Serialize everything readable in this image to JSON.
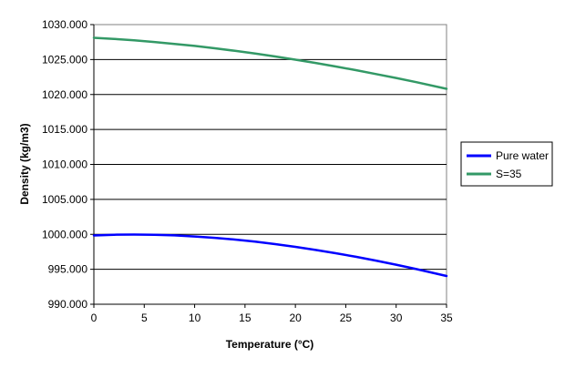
{
  "chart_data": {
    "type": "line",
    "xlabel": "Temperature (°C)",
    "ylabel": "Density (kg/m3)",
    "xlim": [
      0,
      35
    ],
    "ylim": [
      990,
      1030
    ],
    "x_ticks": [
      "0",
      "5",
      "10",
      "15",
      "20",
      "25",
      "30",
      "35"
    ],
    "y_ticks": [
      "990.000",
      "995.000",
      "1000.000",
      "1005.000",
      "1010.000",
      "1015.000",
      "1020.000",
      "1025.000",
      "1030.000"
    ],
    "grid": "horizontal",
    "legend_position": "right",
    "series": [
      {
        "name": "Pure water",
        "color": "#0000ff",
        "x": [
          0,
          2,
          4,
          6,
          8,
          10,
          12,
          14,
          16,
          18,
          20,
          22,
          24,
          26,
          28,
          30,
          32,
          35
        ],
        "y": [
          999.84,
          999.94,
          999.97,
          999.94,
          999.85,
          999.7,
          999.5,
          999.25,
          998.95,
          998.6,
          998.21,
          997.77,
          997.3,
          996.79,
          996.24,
          995.65,
          995.03,
          994.04
        ]
      },
      {
        "name": "S=35",
        "color": "#339966",
        "x": [
          0,
          2,
          4,
          6,
          8,
          10,
          12,
          14,
          16,
          18,
          20,
          22,
          24,
          26,
          28,
          30,
          32,
          35
        ],
        "y": [
          1028.11,
          1027.95,
          1027.75,
          1027.51,
          1027.24,
          1026.95,
          1026.61,
          1026.25,
          1025.86,
          1025.44,
          1024.99,
          1024.51,
          1024.01,
          1023.48,
          1022.93,
          1022.36,
          1021.76,
          1020.81
        ]
      }
    ]
  }
}
